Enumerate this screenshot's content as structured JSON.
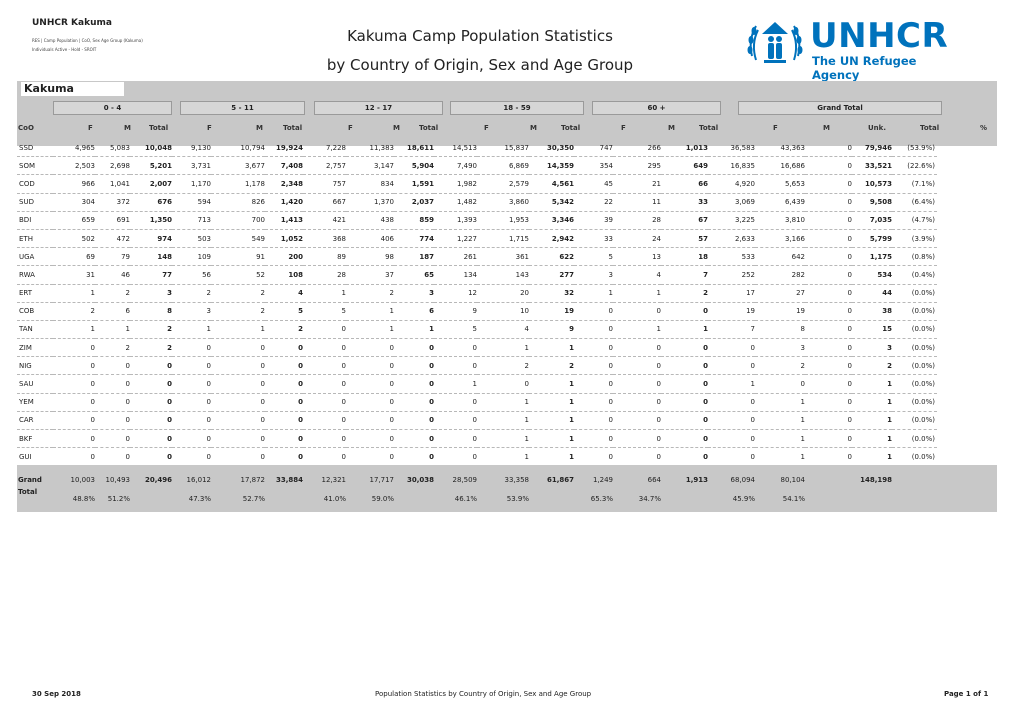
{
  "header": {
    "org": "UNHCR Kakuma",
    "sub1": "RES | Camp Population | CoO, Sex Age Group (Kakuma)",
    "sub2": "Individuals Active - Hold - SROIT",
    "title1": "Kakuma Camp Population Statistics",
    "title2": "by Country of Origin, Sex and Age Group",
    "logo_word": "UNHCR",
    "logo_tag": "The UN Refugee Agency"
  },
  "camp": "Kakuma",
  "groups": [
    "0 - 4",
    "5 - 11",
    "12 - 17",
    "18 - 59",
    "60 +",
    "Grand Total"
  ],
  "col_headers": [
    "CoO",
    "F",
    "M",
    "Total",
    "F",
    "M",
    "Total",
    "F",
    "M",
    "Total",
    "F",
    "M",
    "Total",
    "F",
    "M",
    "Total",
    "F",
    "M",
    "Unk.",
    "Total",
    "%"
  ],
  "rows": [
    [
      "SSD",
      "4,965",
      "5,083",
      "10,048",
      "9,130",
      "10,794",
      "19,924",
      "7,228",
      "11,383",
      "18,611",
      "14,513",
      "15,837",
      "30,350",
      "747",
      "266",
      "1,013",
      "36,583",
      "43,363",
      "0",
      "79,946",
      "(53.9%)"
    ],
    [
      "SOM",
      "2,503",
      "2,698",
      "5,201",
      "3,731",
      "3,677",
      "7,408",
      "2,757",
      "3,147",
      "5,904",
      "7,490",
      "6,869",
      "14,359",
      "354",
      "295",
      "649",
      "16,835",
      "16,686",
      "0",
      "33,521",
      "(22.6%)"
    ],
    [
      "COD",
      "966",
      "1,041",
      "2,007",
      "1,170",
      "1,178",
      "2,348",
      "757",
      "834",
      "1,591",
      "1,982",
      "2,579",
      "4,561",
      "45",
      "21",
      "66",
      "4,920",
      "5,653",
      "0",
      "10,573",
      "(7.1%)"
    ],
    [
      "SUD",
      "304",
      "372",
      "676",
      "594",
      "826",
      "1,420",
      "667",
      "1,370",
      "2,037",
      "1,482",
      "3,860",
      "5,342",
      "22",
      "11",
      "33",
      "3,069",
      "6,439",
      "0",
      "9,508",
      "(6.4%)"
    ],
    [
      "BDI",
      "659",
      "691",
      "1,350",
      "713",
      "700",
      "1,413",
      "421",
      "438",
      "859",
      "1,393",
      "1,953",
      "3,346",
      "39",
      "28",
      "67",
      "3,225",
      "3,810",
      "0",
      "7,035",
      "(4.7%)"
    ],
    [
      "ETH",
      "502",
      "472",
      "974",
      "503",
      "549",
      "1,052",
      "368",
      "406",
      "774",
      "1,227",
      "1,715",
      "2,942",
      "33",
      "24",
      "57",
      "2,633",
      "3,166",
      "0",
      "5,799",
      "(3.9%)"
    ],
    [
      "UGA",
      "69",
      "79",
      "148",
      "109",
      "91",
      "200",
      "89",
      "98",
      "187",
      "261",
      "361",
      "622",
      "5",
      "13",
      "18",
      "533",
      "642",
      "0",
      "1,175",
      "(0.8%)"
    ],
    [
      "RWA",
      "31",
      "46",
      "77",
      "56",
      "52",
      "108",
      "28",
      "37",
      "65",
      "134",
      "143",
      "277",
      "3",
      "4",
      "7",
      "252",
      "282",
      "0",
      "534",
      "(0.4%)"
    ],
    [
      "ERT",
      "1",
      "2",
      "3",
      "2",
      "2",
      "4",
      "1",
      "2",
      "3",
      "12",
      "20",
      "32",
      "1",
      "1",
      "2",
      "17",
      "27",
      "0",
      "44",
      "(0.0%)"
    ],
    [
      "COB",
      "2",
      "6",
      "8",
      "3",
      "2",
      "5",
      "5",
      "1",
      "6",
      "9",
      "10",
      "19",
      "0",
      "0",
      "0",
      "19",
      "19",
      "0",
      "38",
      "(0.0%)"
    ],
    [
      "TAN",
      "1",
      "1",
      "2",
      "1",
      "1",
      "2",
      "0",
      "1",
      "1",
      "5",
      "4",
      "9",
      "0",
      "1",
      "1",
      "7",
      "8",
      "0",
      "15",
      "(0.0%)"
    ],
    [
      "ZIM",
      "0",
      "2",
      "2",
      "0",
      "0",
      "0",
      "0",
      "0",
      "0",
      "0",
      "1",
      "1",
      "0",
      "0",
      "0",
      "0",
      "3",
      "0",
      "3",
      "(0.0%)"
    ],
    [
      "NIG",
      "0",
      "0",
      "0",
      "0",
      "0",
      "0",
      "0",
      "0",
      "0",
      "0",
      "2",
      "2",
      "0",
      "0",
      "0",
      "0",
      "2",
      "0",
      "2",
      "(0.0%)"
    ],
    [
      "SAU",
      "0",
      "0",
      "0",
      "0",
      "0",
      "0",
      "0",
      "0",
      "0",
      "1",
      "0",
      "1",
      "0",
      "0",
      "0",
      "1",
      "0",
      "0",
      "1",
      "(0.0%)"
    ],
    [
      "YEM",
      "0",
      "0",
      "0",
      "0",
      "0",
      "0",
      "0",
      "0",
      "0",
      "0",
      "1",
      "1",
      "0",
      "0",
      "0",
      "0",
      "1",
      "0",
      "1",
      "(0.0%)"
    ],
    [
      "CAR",
      "0",
      "0",
      "0",
      "0",
      "0",
      "0",
      "0",
      "0",
      "0",
      "0",
      "1",
      "1",
      "0",
      "0",
      "0",
      "0",
      "1",
      "0",
      "1",
      "(0.0%)"
    ],
    [
      "BKF",
      "0",
      "0",
      "0",
      "0",
      "0",
      "0",
      "0",
      "0",
      "0",
      "0",
      "1",
      "1",
      "0",
      "0",
      "0",
      "0",
      "1",
      "0",
      "1",
      "(0.0%)"
    ],
    [
      "GUI",
      "0",
      "0",
      "0",
      "0",
      "0",
      "0",
      "0",
      "0",
      "0",
      "0",
      "1",
      "1",
      "0",
      "0",
      "0",
      "0",
      "1",
      "0",
      "1",
      "(0.0%)"
    ]
  ],
  "grand_total": {
    "label1": "Grand",
    "label2": "Total",
    "values": [
      "10,003",
      "10,493",
      "20,496",
      "16,012",
      "17,872",
      "33,884",
      "12,321",
      "17,717",
      "30,038",
      "28,509",
      "33,358",
      "61,867",
      "1,249",
      "664",
      "1,913",
      "68,094",
      "80,104",
      "",
      "148,198",
      ""
    ],
    "percents": [
      "48.8%",
      "51.2%",
      "",
      "47.3%",
      "52.7%",
      "",
      "41.0%",
      "59.0%",
      "",
      "46.1%",
      "53.9%",
      "",
      "65.3%",
      "34.7%",
      "",
      "45.9%",
      "54.1%",
      "",
      "",
      ""
    ]
  },
  "footer": {
    "date": "30 Sep 2018",
    "center": "Population Statistics by Country of Origin, Sex and Age Group",
    "page": "Page 1 of 1"
  }
}
